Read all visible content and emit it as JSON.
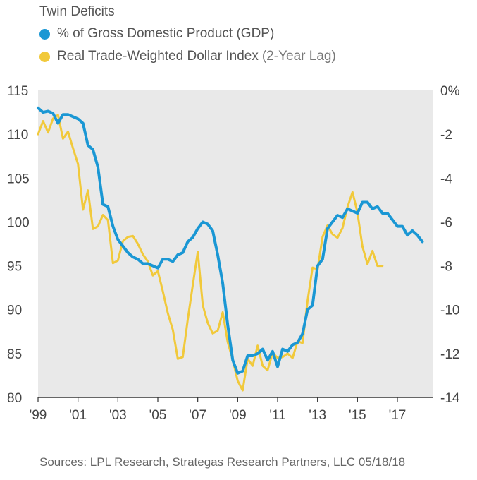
{
  "header": {
    "title": "Twin Deficits",
    "legend_gdp": "% of Gross Domestic Product (GDP)",
    "legend_dollar_main": "Real Trade-Weighted Dollar Index ",
    "legend_dollar_note": "(2-Year Lag)"
  },
  "colors": {
    "gdp": "#1a97d4",
    "dollar": "#f1c93b",
    "plot_bg": "#e9e9e9"
  },
  "footer": {
    "source": "Sources: LPL Research, Strategas Research Partners, LLC    05/18/18"
  },
  "chart_data": {
    "type": "line",
    "title": "Twin Deficits",
    "x_ticks": [
      "'99",
      "'01",
      "'03",
      "'05",
      "'07",
      "'09",
      "'11",
      "'13",
      "'15",
      "'17"
    ],
    "x_tick_values": [
      1999,
      2001,
      2003,
      2005,
      2007,
      2009,
      2011,
      2013,
      2015,
      2017
    ],
    "xlim": [
      1999,
      2018.8
    ],
    "left_axis": {
      "ticks": [
        "115",
        "110",
        "105",
        "100",
        "95",
        "90",
        "85",
        "80"
      ],
      "tick_values": [
        115,
        110,
        105,
        100,
        95,
        90,
        85,
        80
      ],
      "ylim": [
        80,
        115
      ]
    },
    "right_axis": {
      "ticks": [
        "0%",
        "-2",
        "-4",
        "-6",
        "-8",
        "-10",
        "-12",
        "-14"
      ],
      "tick_values": [
        0,
        -2,
        -4,
        -6,
        -8,
        -10,
        -12,
        -14
      ],
      "ylim": [
        -14,
        0
      ]
    },
    "grid": false,
    "legend_position": "top-left",
    "series": [
      {
        "name": "% of Gross Domestic Product (GDP)",
        "axis": "right",
        "x": [
          1999.0,
          1999.25,
          1999.5,
          1999.75,
          2000.0,
          2000.25,
          2000.5,
          2000.75,
          2001.0,
          2001.25,
          2001.5,
          2001.75,
          2002.0,
          2002.25,
          2002.5,
          2002.75,
          2003.0,
          2003.25,
          2003.5,
          2003.75,
          2004.0,
          2004.25,
          2004.5,
          2004.75,
          2005.0,
          2005.25,
          2005.5,
          2005.75,
          2006.0,
          2006.25,
          2006.5,
          2006.75,
          2007.0,
          2007.25,
          2007.5,
          2007.75,
          2008.0,
          2008.25,
          2008.5,
          2008.75,
          2009.0,
          2009.25,
          2009.5,
          2009.75,
          2010.0,
          2010.25,
          2010.5,
          2010.75,
          2011.0,
          2011.25,
          2011.5,
          2011.75,
          2012.0,
          2012.25,
          2012.5,
          2012.75,
          2013.0,
          2013.25,
          2013.5,
          2013.75,
          2014.0,
          2014.25,
          2014.5,
          2014.75,
          2015.0,
          2015.25,
          2015.5,
          2015.75,
          2016.0,
          2016.25,
          2016.5,
          2016.75,
          2017.0,
          2017.25,
          2017.5,
          2017.75,
          2018.0,
          2018.25
        ],
        "values": [
          -0.8,
          -1.0,
          -0.95,
          -1.05,
          -1.5,
          -1.1,
          -1.1,
          -1.2,
          -1.3,
          -1.5,
          -2.5,
          -2.7,
          -3.5,
          -5.2,
          -5.3,
          -6.2,
          -6.8,
          -7.1,
          -7.4,
          -7.6,
          -7.7,
          -7.9,
          -7.9,
          -8.0,
          -8.1,
          -7.7,
          -7.7,
          -7.8,
          -7.5,
          -7.4,
          -6.9,
          -6.7,
          -6.3,
          -6.0,
          -6.1,
          -6.4,
          -7.5,
          -8.8,
          -10.7,
          -12.3,
          -12.9,
          -12.8,
          -12.1,
          -12.1,
          -12.0,
          -11.8,
          -12.3,
          -11.9,
          -12.6,
          -11.8,
          -11.9,
          -11.6,
          -11.5,
          -11.1,
          -10.0,
          -9.8,
          -8.0,
          -7.7,
          -6.3,
          -6.0,
          -5.7,
          -5.8,
          -5.4,
          -5.5,
          -5.6,
          -5.1,
          -5.1,
          -5.4,
          -5.3,
          -5.6,
          -5.6,
          -5.9,
          -6.2,
          -6.2,
          -6.6,
          -6.4,
          -6.6,
          -6.9
        ]
      },
      {
        "name": "Real Trade-Weighted Dollar Index (2-Year Lag)",
        "axis": "left",
        "x": [
          1999.0,
          1999.25,
          1999.5,
          1999.75,
          2000.0,
          2000.25,
          2000.5,
          2000.75,
          2001.0,
          2001.25,
          2001.5,
          2001.75,
          2002.0,
          2002.25,
          2002.5,
          2002.75,
          2003.0,
          2003.25,
          2003.5,
          2003.75,
          2004.0,
          2004.25,
          2004.5,
          2004.75,
          2005.0,
          2005.25,
          2005.5,
          2005.75,
          2006.0,
          2006.25,
          2006.5,
          2006.75,
          2007.0,
          2007.25,
          2007.5,
          2007.75,
          2008.0,
          2008.25,
          2008.5,
          2008.75,
          2009.0,
          2009.25,
          2009.5,
          2009.75,
          2010.0,
          2010.25,
          2010.5,
          2010.75,
          2011.0,
          2011.25,
          2011.5,
          2011.75,
          2012.0,
          2012.25,
          2012.5,
          2012.75,
          2013.0,
          2013.25,
          2013.5,
          2013.75,
          2014.0,
          2014.25,
          2014.5,
          2014.75,
          2015.0,
          2015.25,
          2015.5,
          2015.75,
          2016.0,
          2016.25
        ],
        "values": [
          110.0,
          111.5,
          110.2,
          111.8,
          112.2,
          109.5,
          110.3,
          108.4,
          106.6,
          101.4,
          103.6,
          99.2,
          99.5,
          100.8,
          100.2,
          95.3,
          95.6,
          97.8,
          98.3,
          98.4,
          97.5,
          96.3,
          95.5,
          93.9,
          94.4,
          92.1,
          89.6,
          87.7,
          84.4,
          84.6,
          88.9,
          92.8,
          96.6,
          90.5,
          88.5,
          87.3,
          87.6,
          89.7,
          86.3,
          84.3,
          81.9,
          80.8,
          84.4,
          83.6,
          85.9,
          83.6,
          83.1,
          85.1,
          84.5,
          84.6,
          85.0,
          84.5,
          86.4,
          86.2,
          91.0,
          94.8,
          94.6,
          98.3,
          99.6,
          98.6,
          98.2,
          99.3,
          101.7,
          103.4,
          101.1,
          97.2,
          95.2,
          96.7,
          95.0,
          95.0
        ]
      }
    ]
  }
}
